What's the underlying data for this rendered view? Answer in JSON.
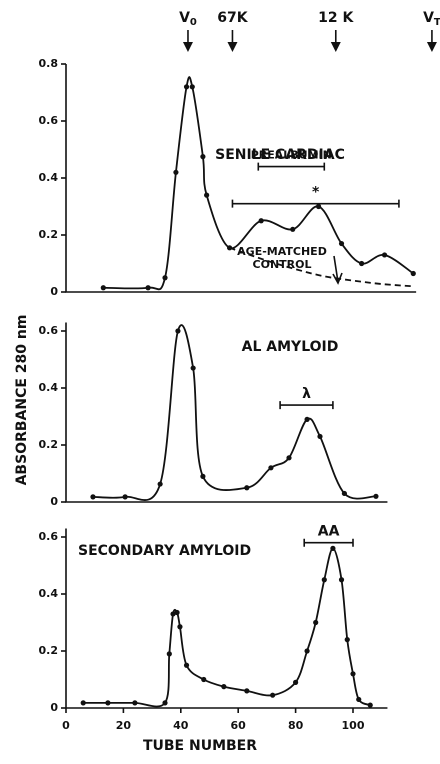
{
  "chart_data": [
    {
      "type": "line",
      "title": "SENILE CARDIAC",
      "xlim": [
        0,
        122
      ],
      "ylim": [
        0,
        0.8
      ],
      "yticks": [
        0,
        0.2,
        0.4,
        0.6,
        0.8
      ],
      "markers": [
        {
          "label": "V",
          "sub": "0",
          "tube": 42.5
        },
        {
          "label": "67K",
          "tube": 58
        },
        {
          "label": "12 K",
          "tube": 94
        },
        {
          "label": "V",
          "sub": "T",
          "tube": 127.5
        }
      ],
      "series": [
        {
          "color": "#111111",
          "dashed": false,
          "points": true,
          "x": [
            13,
            28.6,
            34.5,
            38.3,
            42,
            44,
            47.7,
            49,
            57,
            68,
            79,
            88,
            96,
            103,
            111,
            121
          ],
          "values": [
            0.015,
            0.015,
            0.05,
            0.42,
            0.72,
            0.72,
            0.475,
            0.34,
            0.155,
            0.25,
            0.22,
            0.3,
            0.17,
            0.1,
            0.13,
            0.065
          ]
        },
        {
          "color": "#111111",
          "dashed": true,
          "points": false,
          "x": [
            57,
            70,
            80,
            90,
            100,
            110,
            121
          ],
          "values": [
            0.155,
            0.11,
            0.08,
            0.055,
            0.04,
            0.028,
            0.02
          ]
        }
      ],
      "ranges": [
        {
          "label": "PREALBUMIN",
          "from": 67,
          "to": 90,
          "at": 0.44
        },
        {
          "label": "*",
          "from": 58,
          "to": 116,
          "at": 0.31
        }
      ],
      "annotations": [
        "AGE-MATCHED",
        "CONTROL"
      ]
    },
    {
      "type": "line",
      "title": "AL AMYLOID",
      "ylabel": "ABSORBANCE 280 nm",
      "xlim": [
        0,
        112
      ],
      "ylim": [
        0,
        0.63
      ],
      "yticks": [
        0,
        0.2,
        0.4,
        0.6
      ],
      "series": [
        {
          "color": "#111111",
          "dashed": false,
          "points": true,
          "x": [
            9.4,
            20.6,
            32.8,
            39,
            44.3,
            47.7,
            63,
            71.4,
            77.7,
            84,
            88.5,
            97,
            108
          ],
          "values": [
            0.018,
            0.018,
            0.063,
            0.6,
            0.47,
            0.09,
            0.05,
            0.12,
            0.155,
            0.29,
            0.23,
            0.03,
            0.02
          ]
        }
      ],
      "ranges": [
        {
          "label": "λ",
          "from": 74.6,
          "to": 93,
          "at": 0.34
        }
      ]
    },
    {
      "type": "line",
      "title": "SECONDARY AMYLOID",
      "xlabel": "TUBE NUMBER",
      "xlim": [
        0,
        112
      ],
      "ylim": [
        0,
        0.63
      ],
      "yticks": [
        0,
        0.2,
        0.4,
        0.6
      ],
      "xticks": [
        0,
        20,
        40,
        60,
        80,
        100
      ],
      "series": [
        {
          "color": "#111111",
          "dashed": false,
          "points": true,
          "x": [
            6,
            14.6,
            24,
            34.5,
            36,
            37.3,
            38.7,
            39.7,
            42,
            48,
            55,
            63,
            72,
            80,
            84,
            87,
            90,
            93,
            96,
            98,
            100,
            102,
            106
          ],
          "values": [
            0.018,
            0.018,
            0.018,
            0.018,
            0.19,
            0.33,
            0.335,
            0.285,
            0.15,
            0.1,
            0.075,
            0.06,
            0.045,
            0.09,
            0.2,
            0.3,
            0.45,
            0.56,
            0.45,
            0.24,
            0.12,
            0.03,
            0.01
          ]
        }
      ],
      "ranges": [
        {
          "label": "AA",
          "from": 83,
          "to": 100,
          "at": 0.58
        }
      ]
    }
  ]
}
